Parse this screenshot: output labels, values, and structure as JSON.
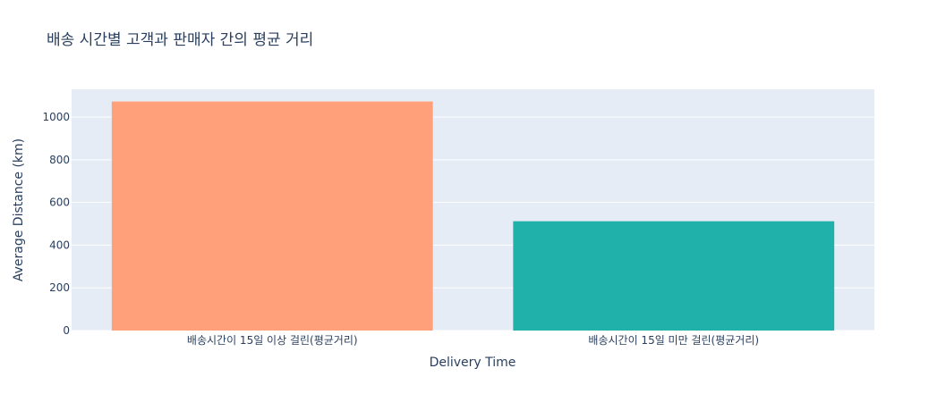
{
  "chart_data": {
    "type": "bar",
    "title": "배송 시간별 고객과 판매자 간의 평균 거리",
    "xlabel": "Delivery Time",
    "ylabel": "Average Distance (km)",
    "categories": [
      "배송시간이 15일 이상 걸린(평균거리)",
      "배송시간이 15일 미만 걸린(평균거리)"
    ],
    "values": [
      1073,
      512
    ],
    "colors": [
      "#FFA07A",
      "#20B2AA"
    ],
    "ylim": [
      0,
      1130
    ],
    "yticks": [
      0,
      200,
      400,
      600,
      800,
      1000
    ],
    "grid": true,
    "plot_bgcolor": "#E5ECF6"
  }
}
